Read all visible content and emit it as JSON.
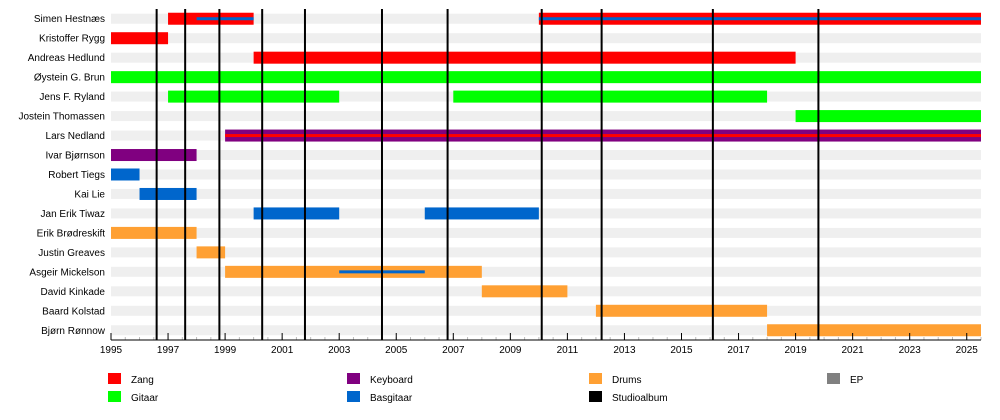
{
  "chart_data": {
    "type": "timeline",
    "title": "",
    "xlim": [
      1995,
      2025.5
    ],
    "x_ticks": [
      "1995",
      "1997",
      "1999",
      "2001",
      "2003",
      "2005",
      "2007",
      "2009",
      "2011",
      "2013",
      "2015",
      "2017",
      "2019",
      "2021",
      "2023",
      "2025"
    ],
    "grid": true,
    "legend_placement": "bottom",
    "roles": [
      {
        "key": "zang",
        "label": "Zang",
        "color": "#ff0000"
      },
      {
        "key": "gitaar",
        "label": "Gitaar",
        "color": "#00ff00"
      },
      {
        "key": "keyboard",
        "label": "Keyboard",
        "color": "#800080"
      },
      {
        "key": "basgitaar",
        "label": "Basgitaar",
        "color": "#0066cc"
      },
      {
        "key": "drums",
        "label": "Drums",
        "color": "#ffa033"
      },
      {
        "key": "studioalbum",
        "label": "Studioalbum",
        "color": "#000000"
      },
      {
        "key": "ep",
        "label": "EP",
        "color": "#808080"
      }
    ],
    "studio_albums": [
      1996.6,
      1997.6,
      1998.8,
      2000.3,
      2001.8,
      2004.5,
      2006.8,
      2010.1,
      2012.2,
      2016.1,
      2019.8
    ],
    "members": [
      {
        "name": "Simen Hestnæs",
        "bars": [
          {
            "role": "zang",
            "start": 1997.0,
            "end": 2000.0
          },
          {
            "role": "zang",
            "start": 2010.0,
            "end": 2025.5
          }
        ],
        "overlays": [
          {
            "role": "basgitaar",
            "start": 1998.0,
            "end": 2000.0
          },
          {
            "role": "basgitaar",
            "start": 2010.0,
            "end": 2025.5
          }
        ]
      },
      {
        "name": "Kristoffer Rygg",
        "bars": [
          {
            "role": "zang",
            "start": 1995.0,
            "end": 1997.0
          }
        ],
        "overlays": []
      },
      {
        "name": "Andreas Hedlund",
        "bars": [
          {
            "role": "zang",
            "start": 2000.0,
            "end": 2019.0
          }
        ],
        "overlays": []
      },
      {
        "name": "Øystein G. Brun",
        "bars": [
          {
            "role": "gitaar",
            "start": 1995.0,
            "end": 2025.5
          }
        ],
        "overlays": []
      },
      {
        "name": "Jens F. Ryland",
        "bars": [
          {
            "role": "gitaar",
            "start": 1997.0,
            "end": 2003.0
          },
          {
            "role": "gitaar",
            "start": 2007.0,
            "end": 2018.0
          }
        ],
        "overlays": []
      },
      {
        "name": "Jostein Thomassen",
        "bars": [
          {
            "role": "gitaar",
            "start": 2019.0,
            "end": 2025.5
          }
        ],
        "overlays": []
      },
      {
        "name": "Lars Nedland",
        "bars": [
          {
            "role": "keyboard",
            "start": 1999.0,
            "end": 2025.5
          }
        ],
        "overlays": [
          {
            "role": "zang",
            "start": 1999.0,
            "end": 2025.5
          }
        ]
      },
      {
        "name": "Ivar Bjørnson",
        "bars": [
          {
            "role": "keyboard",
            "start": 1995.0,
            "end": 1998.0
          }
        ],
        "overlays": []
      },
      {
        "name": "Robert Tiegs",
        "bars": [
          {
            "role": "basgitaar",
            "start": 1995.0,
            "end": 1996.0
          }
        ],
        "overlays": []
      },
      {
        "name": "Kai Lie",
        "bars": [
          {
            "role": "basgitaar",
            "start": 1996.0,
            "end": 1998.0
          }
        ],
        "overlays": []
      },
      {
        "name": "Jan Erik Tiwaz",
        "bars": [
          {
            "role": "basgitaar",
            "start": 2000.0,
            "end": 2003.0
          },
          {
            "role": "basgitaar",
            "start": 2006.0,
            "end": 2010.0
          }
        ],
        "overlays": []
      },
      {
        "name": "Erik Brødreskift",
        "bars": [
          {
            "role": "drums",
            "start": 1995.0,
            "end": 1998.0
          }
        ],
        "overlays": []
      },
      {
        "name": "Justin Greaves",
        "bars": [
          {
            "role": "drums",
            "start": 1998.0,
            "end": 1999.0
          }
        ],
        "overlays": []
      },
      {
        "name": "Asgeir Mickelson",
        "bars": [
          {
            "role": "drums",
            "start": 1999.0,
            "end": 2008.0
          }
        ],
        "overlays": [
          {
            "role": "basgitaar",
            "start": 2003.0,
            "end": 2006.0
          }
        ]
      },
      {
        "name": "David Kinkade",
        "bars": [
          {
            "role": "drums",
            "start": 2008.0,
            "end": 2011.0
          }
        ],
        "overlays": []
      },
      {
        "name": "Baard Kolstad",
        "bars": [
          {
            "role": "drums",
            "start": 2012.0,
            "end": 2018.0
          }
        ],
        "overlays": []
      },
      {
        "name": "Bjørn Rønnow",
        "bars": [
          {
            "role": "drums",
            "start": 2018.0,
            "end": 2025.5
          }
        ],
        "overlays": []
      }
    ]
  }
}
